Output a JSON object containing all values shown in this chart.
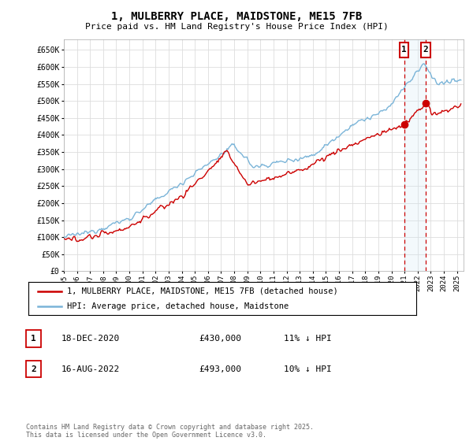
{
  "title": "1, MULBERRY PLACE, MAIDSTONE, ME15 7FB",
  "subtitle": "Price paid vs. HM Land Registry's House Price Index (HPI)",
  "ylabel_ticks": [
    "£0",
    "£50K",
    "£100K",
    "£150K",
    "£200K",
    "£250K",
    "£300K",
    "£350K",
    "£400K",
    "£450K",
    "£500K",
    "£550K",
    "£600K",
    "£650K"
  ],
  "ytick_values": [
    0,
    50000,
    100000,
    150000,
    200000,
    250000,
    300000,
    350000,
    400000,
    450000,
    500000,
    550000,
    600000,
    650000
  ],
  "ylim": [
    0,
    680000
  ],
  "legend_line1": "1, MULBERRY PLACE, MAIDSTONE, ME15 7FB (detached house)",
  "legend_line2": "HPI: Average price, detached house, Maidstone",
  "annotation1_label": "1",
  "annotation1_date": "18-DEC-2020",
  "annotation1_price": "£430,000",
  "annotation1_hpi": "11% ↓ HPI",
  "annotation2_label": "2",
  "annotation2_date": "16-AUG-2022",
  "annotation2_price": "£493,000",
  "annotation2_hpi": "10% ↓ HPI",
  "footer": "Contains HM Land Registry data © Crown copyright and database right 2025.\nThis data is licensed under the Open Government Licence v3.0.",
  "hpi_color": "#7ab4d8",
  "price_color": "#cc0000",
  "dashed_color": "#cc0000",
  "shade_color": "#d0e8f5",
  "grid_color": "#dddddd",
  "background_color": "#ffffff",
  "sale1_x": 2020.96,
  "sale1_y": 430000,
  "sale2_x": 2022.62,
  "sale2_y": 493000,
  "xlim_left": 1995,
  "xlim_right": 2025.5
}
